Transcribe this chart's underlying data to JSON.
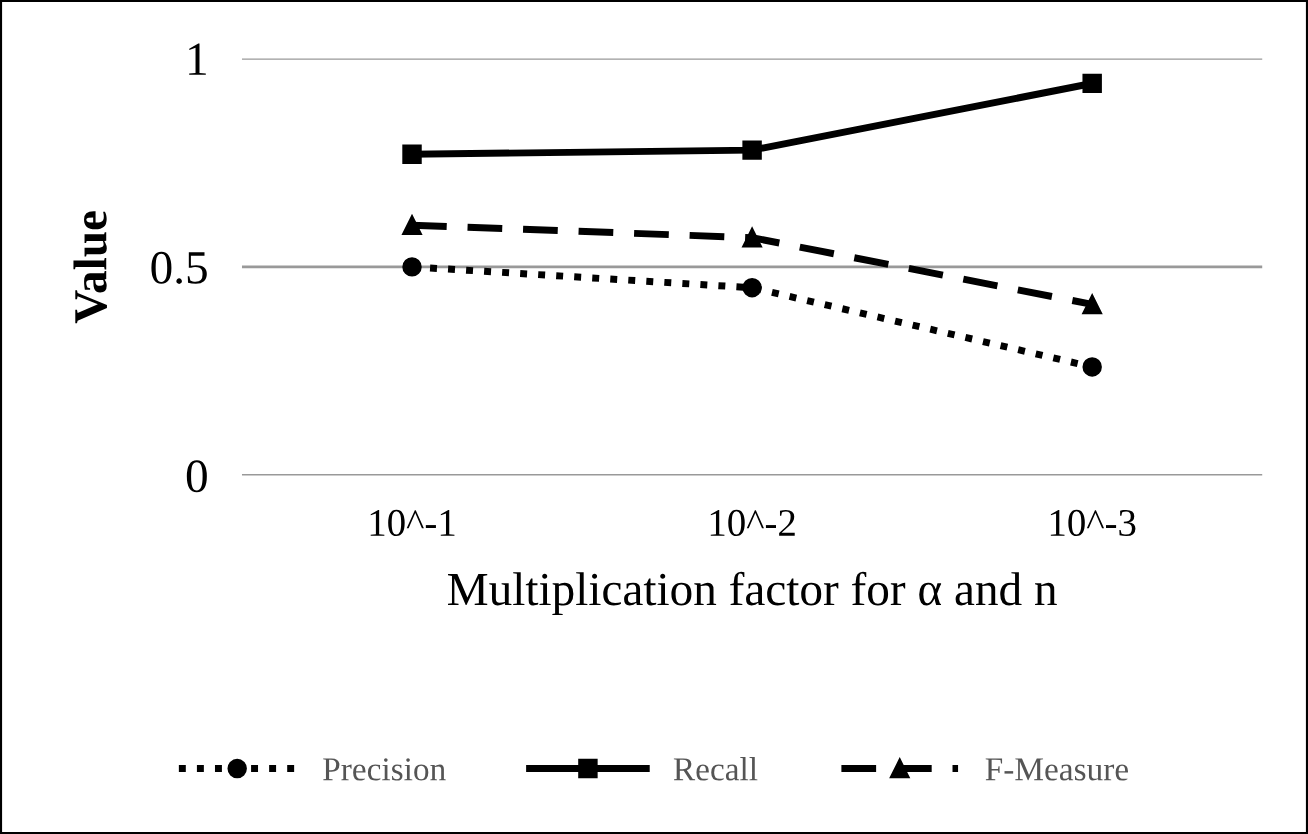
{
  "chart_data": {
    "type": "line",
    "xlabel": "Multiplication factor for α and n",
    "ylabel": "Value",
    "categories": [
      "10^-1",
      "10^-2",
      "10^-3"
    ],
    "series": [
      {
        "name": "Precision",
        "color": "#000000",
        "values": [
          0.5,
          0.45,
          0.26
        ],
        "marker": "circle",
        "line_style": "dotted"
      },
      {
        "name": "Recall",
        "color": "#000000",
        "values": [
          0.77,
          0.78,
          0.94
        ],
        "marker": "square",
        "line_style": "solid"
      },
      {
        "name": "F-Measure",
        "color": "#000000",
        "values": [
          0.6,
          0.57,
          0.41
        ],
        "marker": "triangle",
        "line_style": "dashed"
      }
    ],
    "ylim": [
      0,
      1
    ],
    "yticks": [
      0,
      0.5,
      1
    ],
    "grid": "y",
    "legend": "bottom"
  }
}
